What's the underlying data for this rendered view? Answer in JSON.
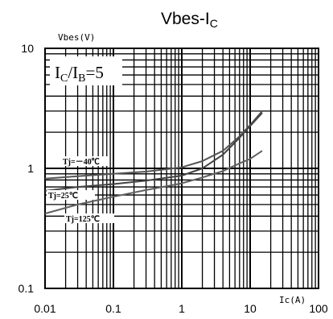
{
  "chart_data": {
    "type": "line",
    "title_main": "Vbes-I",
    "title_sub": "C",
    "ylabel": "Vbes(V)",
    "xlabel": "Ic(A)",
    "xscale": "log",
    "yscale": "log",
    "xlim": [
      0.01,
      100
    ],
    "ylim": [
      0.1,
      10
    ],
    "grid": true,
    "x_ticks": [
      "0.01",
      "0.1",
      "1",
      "10",
      "100"
    ],
    "y_ticks": [
      "10",
      "1",
      "0.1"
    ],
    "annotation": {
      "main1": "I",
      "sub1": "C",
      "slash": "/I",
      "sub2": "B",
      "value": "=5"
    },
    "series": [
      {
        "name": "Tj=－40℃",
        "x": [
          0.01,
          0.03,
          0.1,
          0.3,
          1,
          2,
          4,
          7,
          10,
          15
        ],
        "y": [
          0.82,
          0.86,
          0.9,
          0.94,
          1.02,
          1.15,
          1.4,
          1.85,
          2.3,
          3.0
        ]
      },
      {
        "name": "Tj=25℃",
        "x": [
          0.01,
          0.03,
          0.1,
          0.3,
          1,
          2,
          4,
          7,
          10,
          15
        ],
        "y": [
          0.65,
          0.7,
          0.74,
          0.79,
          0.87,
          1.0,
          1.3,
          1.8,
          2.25,
          2.9
        ]
      },
      {
        "name": "Tj=125℃",
        "x": [
          0.01,
          0.03,
          0.1,
          0.3,
          1,
          2,
          4,
          7,
          10,
          15
        ],
        "y": [
          0.42,
          0.5,
          0.58,
          0.66,
          0.75,
          0.84,
          0.95,
          1.1,
          1.2,
          1.4
        ]
      }
    ]
  }
}
